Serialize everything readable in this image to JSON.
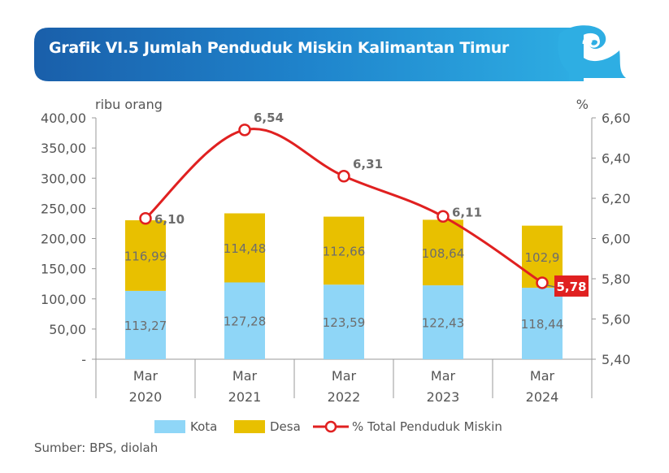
{
  "header": {
    "title": "Grafik VI.5 Jumlah Penduduk Miskin Kalimantan Timur"
  },
  "source": "Sumber: BPS, diolah",
  "chart_data": {
    "type": "bar",
    "stacked": true,
    "categories": [
      "Mar\n2020",
      "Mar\n2021",
      "Mar\n2022",
      "Mar\n2023",
      "Mar\n2024"
    ],
    "series": [
      {
        "name": "Kota",
        "type": "bar",
        "axis": "left",
        "color": "#8fd6f7",
        "values": [
          113.27,
          127.28,
          123.59,
          122.43,
          118.44
        ],
        "labels": [
          "113,27",
          "127,28",
          "123,59",
          "122,43",
          "118,44"
        ]
      },
      {
        "name": "Desa",
        "type": "bar",
        "axis": "left",
        "color": "#e8c000",
        "values": [
          116.99,
          114.48,
          112.66,
          108.64,
          102.9
        ],
        "labels": [
          "116,99",
          "114,48",
          "112,66",
          "108,64",
          "102,9"
        ]
      },
      {
        "name": "% Total Penduduk Miskin",
        "type": "line",
        "axis": "right",
        "color": "#e02020",
        "values": [
          6.1,
          6.54,
          6.31,
          6.11,
          5.78
        ],
        "labels": [
          "6,10",
          "6,54",
          "6,31",
          "6,11",
          "5,78"
        ],
        "highlight_last": true
      }
    ],
    "left_axis": {
      "unit": "ribu orang",
      "ylim": [
        0,
        400
      ],
      "ticks": [
        0,
        50,
        100,
        150,
        200,
        250,
        300,
        350,
        400
      ],
      "tick_labels": [
        "-",
        "50,00",
        "100,00",
        "150,00",
        "200,00",
        "250,00",
        "300,00",
        "350,00",
        "400,00"
      ]
    },
    "right_axis": {
      "unit": "%",
      "ylim": [
        5.4,
        6.6
      ],
      "ticks": [
        5.4,
        5.6,
        5.8,
        6.0,
        6.2,
        6.4,
        6.6
      ],
      "tick_labels": [
        "5,40",
        "5,60",
        "5,80",
        "6,00",
        "6,20",
        "6,40",
        "6,60"
      ]
    },
    "legend": {
      "position": "bottom"
    },
    "grid": false
  },
  "colors": {
    "banner_dark": "#1a5faa",
    "banner_light": "#2eaee3",
    "axis": "#999999",
    "text": "#555555",
    "label_text": "#6d6d6d",
    "highlight": "#e02020"
  }
}
